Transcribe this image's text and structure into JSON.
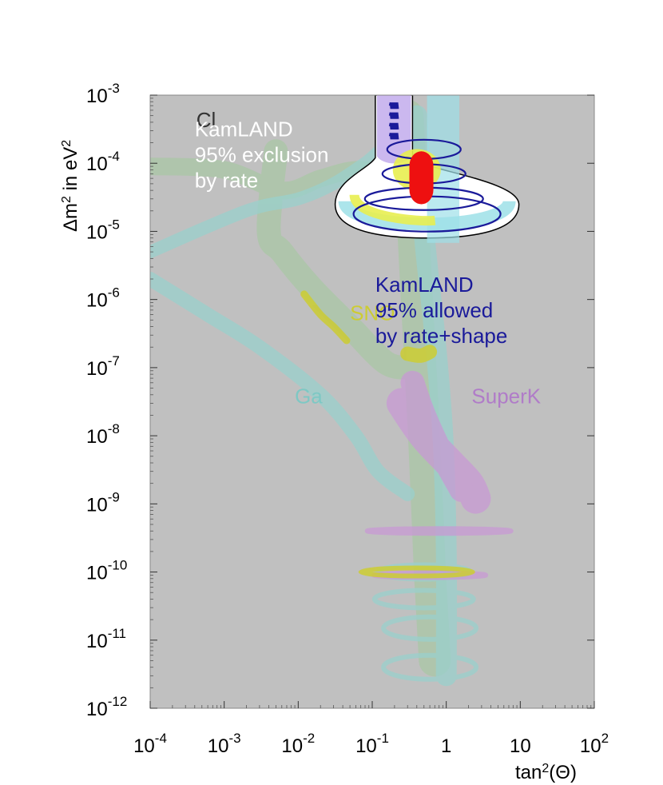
{
  "chart_data": {
    "type": "contour",
    "x_scale": "log",
    "y_scale": "log",
    "xlim": [
      0.0001,
      100
    ],
    "ylim": [
      1e-12,
      0.001
    ],
    "grid": false,
    "background": "#c0c0c0",
    "xlabel": {
      "base": "tan",
      "sup": "2",
      "rest": "(Θ)"
    },
    "ylabel": {
      "delta": "Δ",
      "m": "m",
      "sup": "2",
      "mid": " in eV",
      "sup2": "2"
    },
    "x_ticks": [
      {
        "value": 0.0001,
        "base": "10",
        "sup": "-4"
      },
      {
        "value": 0.001,
        "base": "10",
        "sup": "-3"
      },
      {
        "value": 0.01,
        "base": "10",
        "sup": "-2"
      },
      {
        "value": 0.1,
        "base": "10",
        "sup": "-1"
      },
      {
        "value": 1,
        "base": "1",
        "sup": ""
      },
      {
        "value": 10,
        "base": "10",
        "sup": ""
      },
      {
        "value": 100,
        "base": "10",
        "sup": "2"
      }
    ],
    "y_ticks": [
      {
        "value": 1e-12,
        "base": "10",
        "sup": "-12"
      },
      {
        "value": 1e-11,
        "base": "10",
        "sup": "-11"
      },
      {
        "value": 1e-10,
        "base": "10",
        "sup": "-10"
      },
      {
        "value": 1e-09,
        "base": "10",
        "sup": "-9"
      },
      {
        "value": 1e-08,
        "base": "10",
        "sup": "-8"
      },
      {
        "value": 1e-07,
        "base": "10",
        "sup": "-7"
      },
      {
        "value": 1e-06,
        "base": "10",
        "sup": "-6"
      },
      {
        "value": 1e-05,
        "base": "10",
        "sup": "-5"
      },
      {
        "value": 0.0001,
        "base": "10",
        "sup": "-4"
      },
      {
        "value": 0.001,
        "base": "10",
        "sup": "-3"
      }
    ],
    "regions": [
      {
        "key": "ga",
        "label": "Ga",
        "label_at": {
          "x": 0.009,
          "y": 3e-08
        },
        "color": "#9ad0cc",
        "opacity": 0.75,
        "bands": [
          {
            "points": [
              [
                0.0001,
                2e-06
              ],
              [
                0.0006,
                6e-07
              ],
              [
                0.003,
                2e-07
              ],
              [
                0.02,
                4e-08
              ],
              [
                0.06,
                1e-08
              ],
              [
                0.12,
                3e-09
              ],
              [
                0.3,
                1.4e-09
              ]
            ],
            "width": 18
          },
          {
            "points": [
              [
                0.0001,
                5e-06
              ],
              [
                0.002,
                2e-05
              ],
              [
                0.01,
                3e-05
              ],
              [
                0.03,
                5e-05
              ],
              [
                0.08,
                0.0001
              ],
              [
                0.2,
                0.0002
              ],
              [
                0.5,
                0.0001
              ]
            ],
            "width": 16
          },
          {
            "points": [
              [
                0.4,
                0.0005
              ],
              [
                0.5,
                1e-05
              ],
              [
                0.7,
                3e-07
              ],
              [
                0.9,
                1e-08
              ],
              [
                1.0,
                2e-10
              ],
              [
                1.0,
                3e-12
              ]
            ],
            "width": 26
          }
        ],
        "ellipses": [
          {
            "x": 0.5,
            "y": 1e-10,
            "rx": 58,
            "ry": 9
          },
          {
            "x": 0.5,
            "y": 4e-11,
            "rx": 62,
            "ry": 11
          },
          {
            "x": 0.6,
            "y": 1.5e-11,
            "rx": 58,
            "ry": 14
          },
          {
            "x": 0.6,
            "y": 4e-12,
            "rx": 58,
            "ry": 15
          }
        ]
      },
      {
        "key": "cl",
        "label": "Cl",
        "label_at": {
          "x": 0.00042,
          "y": 0.00034
        },
        "color": "#a8c8a4",
        "opacity": 0.7,
        "bands": [
          {
            "points": [
              [
                0.0001,
                9e-05
              ],
              [
                0.001,
                8e-05
              ],
              [
                0.006,
                4e-05
              ],
              [
                0.02,
                6e-05
              ],
              [
                0.06,
                8e-05
              ],
              [
                0.2,
                7e-05
              ],
              [
                0.4,
                9e-05
              ]
            ],
            "width": 22
          },
          {
            "points": [
              [
                0.005,
                0.00015
              ],
              [
                0.004,
                1e-05
              ],
              [
                0.006,
                5e-06
              ],
              [
                0.015,
                1.5e-06
              ],
              [
                0.05,
                4e-07
              ],
              [
                0.15,
                1.2e-07
              ],
              [
                0.3,
                1e-07
              ]
            ],
            "width": 30
          },
          {
            "points": [
              [
                0.3,
                0.0005
              ],
              [
                0.4,
                1e-06
              ],
              [
                0.5,
                1e-08
              ],
              [
                0.6,
                1e-10
              ],
              [
                0.7,
                5e-12
              ]
            ],
            "width": 40
          }
        ],
        "ellipses": []
      },
      {
        "key": "superk",
        "label": "SuperK",
        "label_at": {
          "x": 2.2,
          "y": 3e-08
        },
        "color": "#c89ad4",
        "opacity": 0.75,
        "bands": [
          {
            "points": [
              [
                0.25,
                3e-08
              ],
              [
                0.5,
                1e-08
              ],
              [
                1.1,
                4e-09
              ],
              [
                2.0,
                2e-09
              ],
              [
                2.5,
                1.2e-09
              ]
            ],
            "width": 38
          },
          {
            "points": [
              [
                0.35,
                6e-08
              ],
              [
                0.5,
                2e-08
              ],
              [
                0.9,
                5e-09
              ],
              [
                1.6,
                1.6e-09
              ]
            ],
            "width": 30
          }
        ],
        "ellipses": [
          {
            "x": 0.8,
            "y": 4e-10,
            "rx": 90,
            "ry": 3
          },
          {
            "x": 0.6,
            "y": 9e-11,
            "rx": 70,
            "ry": 3
          }
        ]
      },
      {
        "key": "sno",
        "label": "SNO",
        "label_at": {
          "x": 0.05,
          "y": 5e-07
        },
        "color": "#cccc33",
        "opacity": 0.85,
        "bands": [
          {
            "points": [
              [
                0.012,
                1.2e-06
              ],
              [
                0.02,
                6e-07
              ],
              [
                0.03,
                4e-07
              ],
              [
                0.045,
                2.5e-07
              ]
            ],
            "width": 9
          },
          {
            "points": [
              [
                0.3,
                1.6e-07
              ],
              [
                0.45,
                1.5e-07
              ],
              [
                0.6,
                1.7e-07
              ]
            ],
            "width": 18
          }
        ],
        "ellipses": [
          {
            "x": 0.4,
            "y": 1e-10,
            "rx": 70,
            "ry": 5
          }
        ]
      }
    ],
    "kamland_exclusion": {
      "label_lines": [
        "KamLAND",
        "95% exclusion",
        "by rate"
      ],
      "label_at": {
        "x": 0.0004,
        "y": 0.00025
      },
      "fill": "#ffffff",
      "outline": "#000000",
      "upper_x": [
        0.11,
        0.35
      ],
      "upper_y": [
        0.001,
        7e-05
      ],
      "arc_center": {
        "x": 0.55,
        "y": 2e-05
      },
      "arc_rx": 115,
      "arc_ry": 30
    },
    "kamland_allowed": {
      "label_lines": [
        "KamLAND",
        "95% allowed",
        "by rate+shape"
      ],
      "label_at": {
        "x": 0.11,
        "y": 1.3e-06
      },
      "color": "#1a1a9a",
      "lavender": "#c8b4ee",
      "yellow": "#e8ee50",
      "cyan": "#9ee0e8",
      "best_fit": {
        "x": 0.45,
        "y": 6e-05,
        "color": "#ee1010"
      }
    }
  }
}
